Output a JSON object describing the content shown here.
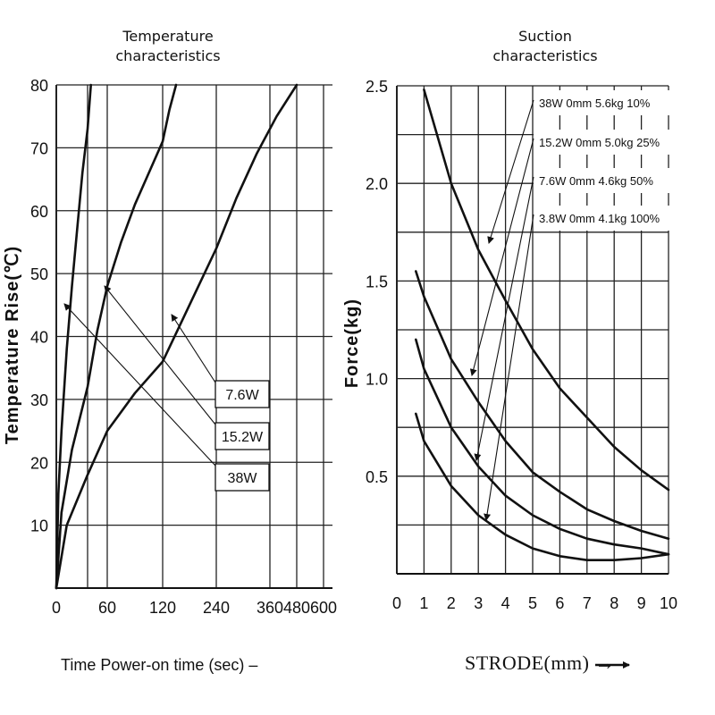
{
  "chart_data": [
    {
      "type": "line",
      "title": "Temperature characteristics",
      "ylabel": "Temperature Rise(℃)",
      "xlabel": "Time Power-on time (sec) –",
      "ylim": [
        0,
        80
      ],
      "yticks": [
        "10",
        "20",
        "30",
        "40",
        "50",
        "60",
        "70",
        "80"
      ],
      "xticks": [
        "0",
        "60",
        "120",
        "240",
        "360",
        "480",
        "600"
      ],
      "grid": true,
      "series": [
        {
          "name": "38W",
          "x": [
            0,
            2,
            5,
            10,
            15,
            20,
            25,
            30,
            35
          ],
          "y": [
            0,
            15,
            25,
            38,
            48,
            57,
            66,
            73,
            80
          ]
        },
        {
          "name": "15.2W",
          "x": [
            0,
            5,
            15,
            30,
            45,
            60,
            75,
            90,
            105,
            120,
            135,
            150
          ],
          "y": [
            0,
            12,
            22,
            32,
            41,
            48,
            55,
            61,
            66,
            71,
            76,
            80
          ]
        },
        {
          "name": "7.6W",
          "x": [
            0,
            10,
            30,
            60,
            90,
            120,
            160,
            200,
            240,
            300,
            360,
            420,
            480
          ],
          "y": [
            0,
            10,
            18,
            25,
            31,
            36,
            42,
            48,
            54,
            62,
            69,
            75,
            80
          ]
        }
      ],
      "box_labels": [
        "7.6W",
        "15.2W",
        "38W"
      ]
    },
    {
      "type": "line",
      "title": "Suction characteristics",
      "ylabel": "Force(kg)",
      "xlabel": "STRODE(mm) →",
      "xlim": [
        0,
        10
      ],
      "ylim": [
        0,
        2.5
      ],
      "yticks": [
        "0.5",
        "1.0",
        "1.5",
        "2.0",
        "2.5"
      ],
      "xticks": [
        "0",
        "1",
        "2",
        "3",
        "4",
        "5",
        "6",
        "7",
        "8",
        "9",
        "10"
      ],
      "grid": true,
      "legend": [
        "38W 0mm 5.6kg 10%",
        "15.2W 0mm 5.0kg 25%",
        "7.6W 0mm 4.6kg 50%",
        "3.8W 0mm 4.1kg 100%"
      ],
      "series": [
        {
          "name": "38W 0mm 5.6kg 10%",
          "x": [
            1,
            2,
            3,
            4,
            5,
            6,
            7,
            8,
            9,
            10
          ],
          "y": [
            2.48,
            2.0,
            1.66,
            1.4,
            1.15,
            0.95,
            0.8,
            0.65,
            0.53,
            0.43
          ]
        },
        {
          "name": "15.2W 0mm 5.0kg 25%",
          "x": [
            0.7,
            1,
            2,
            3,
            4,
            5,
            6,
            7,
            8,
            9,
            10
          ],
          "y": [
            1.55,
            1.42,
            1.1,
            0.88,
            0.68,
            0.52,
            0.42,
            0.33,
            0.27,
            0.22,
            0.18
          ]
        },
        {
          "name": "7.6W 0mm 4.6kg 50%",
          "x": [
            0.7,
            1,
            2,
            3,
            4,
            5,
            6,
            7,
            8,
            9,
            10
          ],
          "y": [
            1.2,
            1.05,
            0.75,
            0.55,
            0.4,
            0.3,
            0.23,
            0.18,
            0.15,
            0.13,
            0.1
          ]
        },
        {
          "name": "3.8W 0mm 4.1kg 100%",
          "x": [
            0.7,
            1,
            2,
            3,
            4,
            5,
            6,
            7,
            8,
            9,
            10
          ],
          "y": [
            0.82,
            0.68,
            0.45,
            0.3,
            0.2,
            0.13,
            0.09,
            0.07,
            0.07,
            0.08,
            0.1
          ]
        }
      ]
    }
  ]
}
